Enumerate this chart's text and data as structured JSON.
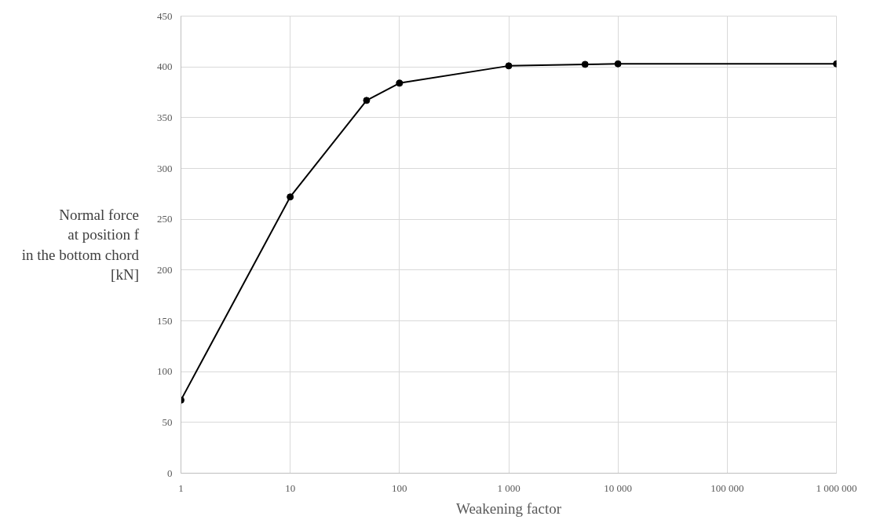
{
  "chart_data": {
    "type": "line",
    "xlabel": "Weakening factor",
    "ylabel": "Normal force\nat position f\nin the bottom chord\n[kN]",
    "x": [
      1,
      10,
      50,
      100,
      1000,
      5000,
      10000,
      1000000
    ],
    "series": [
      {
        "color": "#000000",
        "values": [
          72,
          272,
          367,
          384,
          401,
          402.5,
          403,
          403
        ]
      }
    ],
    "log": "x",
    "marker": "circle",
    "grid": true,
    "xlim": [
      1,
      1000000
    ],
    "ylim": [
      0,
      450
    ],
    "xticks": [
      1,
      10,
      100,
      {
        "value": 1000,
        "label": "1 000"
      },
      {
        "value": 10000,
        "label": "10 000"
      },
      {
        "value": 100000,
        "label": "100 000"
      },
      {
        "value": 1000000,
        "label": "1 000 000"
      }
    ],
    "yticks": [
      0,
      50,
      100,
      150,
      200,
      250,
      300,
      350,
      400,
      450
    ]
  }
}
